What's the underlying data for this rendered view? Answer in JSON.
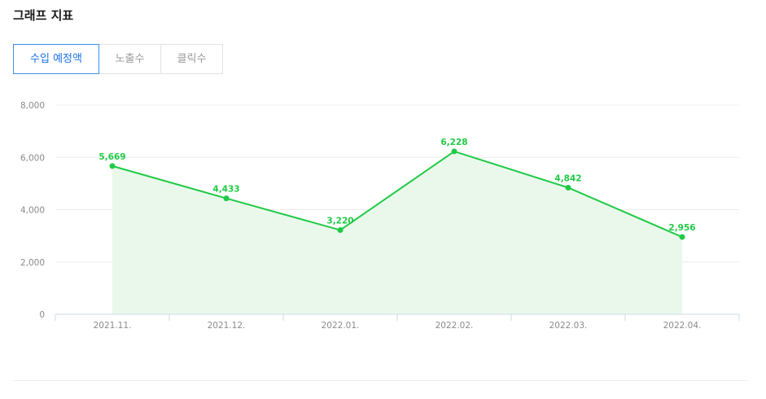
{
  "header": {
    "title": "그래프 지표"
  },
  "tabs": [
    {
      "label": "수입 예정액",
      "active": true
    },
    {
      "label": "노출수",
      "active": false
    },
    {
      "label": "클릭수",
      "active": false
    }
  ],
  "colors": {
    "line": "#1fca45",
    "area": "#eaf8ec",
    "tab_active": "#3d8ff0",
    "grid": "#ececec"
  },
  "chart_data": {
    "type": "area",
    "categories": [
      "2021.11.",
      "2021.12.",
      "2022.01.",
      "2022.02.",
      "2022.03.",
      "2022.04."
    ],
    "values": [
      5669,
      4433,
      3220,
      6228,
      4842,
      2956
    ],
    "value_labels": [
      "5,669",
      "4,433",
      "3,220",
      "6,228",
      "4,842",
      "2,956"
    ],
    "ylim": [
      0,
      8000
    ],
    "yticks": [
      0,
      2000,
      4000,
      6000,
      8000
    ],
    "ytick_labels": [
      "0",
      "2,000",
      "4,000",
      "6,000",
      "8,000"
    ],
    "grid": true,
    "title": "",
    "xlabel": "",
    "ylabel": ""
  }
}
